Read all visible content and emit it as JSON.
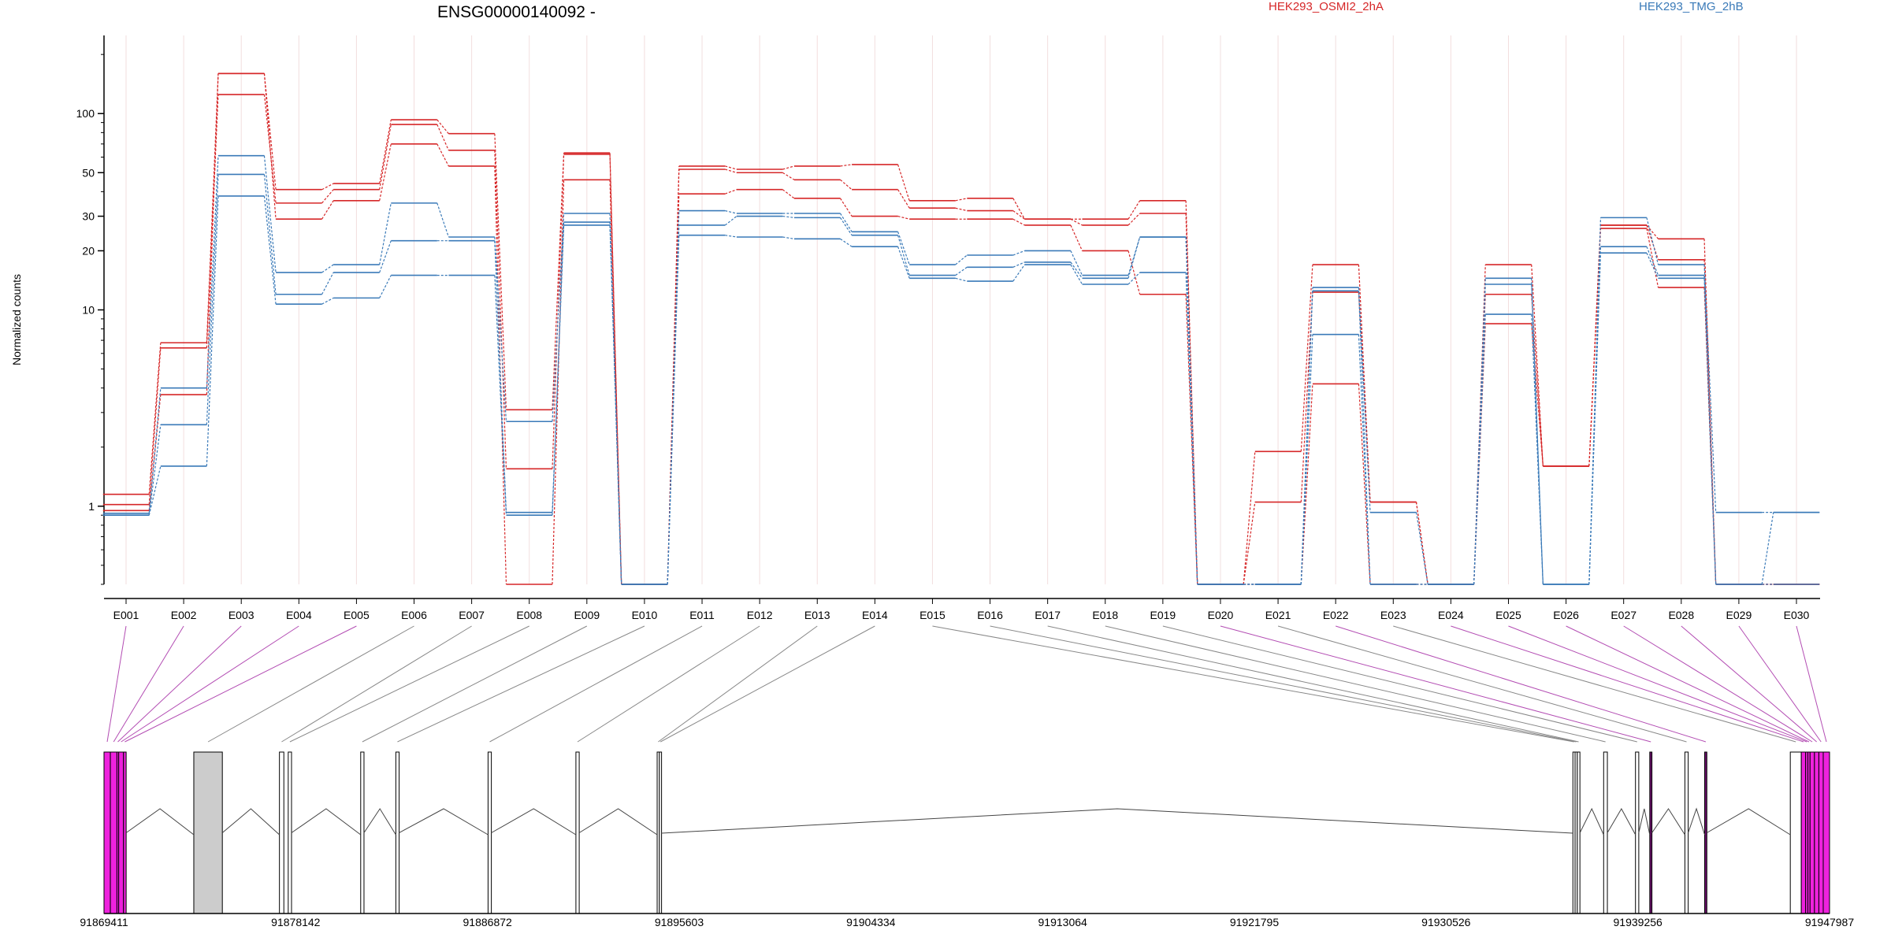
{
  "chart_data": {
    "type": "line",
    "title": "ENSG00000140092 -",
    "ylabel": "Normalized counts",
    "yscale": "log",
    "ylim": [
      0.4,
      250
    ],
    "yticks": [
      1,
      10,
      20,
      30,
      50,
      100
    ],
    "categories": [
      "E001",
      "E002",
      "E003",
      "E004",
      "E005",
      "E006",
      "E007",
      "E008",
      "E009",
      "E010",
      "E011",
      "E012",
      "E013",
      "E014",
      "E015",
      "E016",
      "E017",
      "E018",
      "E019",
      "E020",
      "E021",
      "E022",
      "E023",
      "E024",
      "E025",
      "E026",
      "E027",
      "E028",
      "E029",
      "E030"
    ],
    "legend": [
      {
        "label": "HEK293_OSMI2_2hA",
        "color": "#d62728"
      },
      {
        "label": "HEK293_TMG_2hB",
        "color": "#3a7ab8"
      }
    ],
    "series": [
      {
        "group": "HEK293_OSMI2_2hA",
        "color": "#d62728",
        "values": [
          1.15,
          6.8,
          160,
          41,
          44,
          93,
          79,
          3.1,
          63,
          0.4,
          54,
          52,
          54,
          55,
          36,
          37,
          29,
          29,
          36,
          0.4,
          1.9,
          17,
          1.05,
          0.4,
          17,
          1.6,
          27,
          23,
          0.4,
          0.4
        ]
      },
      {
        "group": "HEK293_OSMI2_2hA",
        "color": "#d62728",
        "values": [
          1.02,
          6.4,
          125,
          35,
          41,
          88,
          65,
          1.55,
          62,
          0.4,
          52,
          50,
          46,
          41,
          33,
          32,
          29,
          27,
          31,
          0.4,
          1.05,
          12.3,
          1.05,
          0.4,
          12,
          1.6,
          27,
          18,
          0.4,
          0.4
        ]
      },
      {
        "group": "HEK293_OSMI2_2hA",
        "color": "#d62728",
        "values": [
          0.95,
          3.7,
          160,
          29,
          36,
          70,
          54,
          0.4,
          46,
          0.4,
          39,
          41,
          37,
          30,
          29,
          29,
          27,
          20,
          12,
          0.4,
          0.4,
          4.2,
          0.4,
          0.4,
          8.5,
          1.6,
          26,
          13,
          0.4,
          0.4
        ]
      },
      {
        "group": "HEK293_TMG_2hB",
        "color": "#3a7ab8",
        "values": [
          0.92,
          4.0,
          61,
          15.5,
          17,
          35,
          23.5,
          2.7,
          31,
          0.4,
          32,
          31,
          31,
          25,
          17,
          19,
          20,
          15,
          23.5,
          0.4,
          0.4,
          13,
          0.93,
          0.4,
          14.5,
          0.4,
          29.5,
          17,
          0.93,
          0.93
        ]
      },
      {
        "group": "HEK293_TMG_2hB",
        "color": "#3a7ab8",
        "values": [
          0.9,
          2.6,
          49,
          12,
          15.5,
          22.5,
          22.5,
          0.93,
          28,
          0.4,
          27,
          30,
          29.5,
          24,
          15,
          16.5,
          17.5,
          14.5,
          23.5,
          0.4,
          0.4,
          12.5,
          0.4,
          0.4,
          13.5,
          0.4,
          21,
          15,
          0.4,
          0.93
        ]
      },
      {
        "group": "HEK293_TMG_2hB",
        "color": "#3a7ab8",
        "values": [
          0.9,
          1.6,
          38,
          10.7,
          11.5,
          15,
          15,
          0.9,
          27,
          0.4,
          24,
          23.5,
          23,
          21,
          14.5,
          14,
          17,
          13.5,
          15.5,
          0.4,
          0.4,
          7.5,
          0.4,
          0.4,
          9.5,
          0.4,
          19.5,
          14.5,
          0.4,
          0.4
        ]
      }
    ],
    "gene_model": {
      "coordinate_ticks": [
        "91869411",
        "91878142",
        "91886872",
        "91895603",
        "91904334",
        "91913064",
        "91921795",
        "91930526",
        "91939256",
        "91947987"
      ],
      "exons": [
        {
          "id": "E001",
          "start": 91869411,
          "end": 91869700,
          "color": "#ee22dd"
        },
        {
          "id": "E002",
          "start": 91869700,
          "end": 91870000,
          "color": "#ee22dd"
        },
        {
          "id": "E003",
          "start": 91870000,
          "end": 91870080,
          "color": "#ee22dd"
        },
        {
          "id": "E004",
          "start": 91870080,
          "end": 91870300,
          "color": "#ee22dd"
        },
        {
          "id": "E005",
          "start": 91870300,
          "end": 91870420,
          "color": "#ee22dd"
        },
        {
          "id": "E006",
          "start": 91873500,
          "end": 91874800,
          "color": "#cccccc"
        },
        {
          "id": "E007",
          "start": 91877400,
          "end": 91877600,
          "color": "#ffffff"
        },
        {
          "id": "E008",
          "start": 91877800,
          "end": 91877950,
          "color": "#ffffff"
        },
        {
          "id": "E009",
          "start": 91881100,
          "end": 91881250,
          "color": "#ffffff"
        },
        {
          "id": "E010",
          "start": 91882700,
          "end": 91882850,
          "color": "#ffffff"
        },
        {
          "id": "E011",
          "start": 91886900,
          "end": 91887050,
          "color": "#ffffff"
        },
        {
          "id": "E012",
          "start": 91890900,
          "end": 91891050,
          "color": "#ffffff"
        },
        {
          "id": "E013",
          "start": 91894600,
          "end": 91894700,
          "color": "#ffffff"
        },
        {
          "id": "E014",
          "start": 91894700,
          "end": 91894800,
          "color": "#ffffff"
        },
        {
          "id": "E015",
          "start": 91936300,
          "end": 91936400,
          "color": "#ffffff"
        },
        {
          "id": "E016",
          "start": 91936400,
          "end": 91936500,
          "color": "#ffffff"
        },
        {
          "id": "E017",
          "start": 91936500,
          "end": 91936620,
          "color": "#ffffff"
        },
        {
          "id": "E018",
          "start": 91937700,
          "end": 91937870,
          "color": "#ffffff"
        },
        {
          "id": "E019",
          "start": 91939150,
          "end": 91939300,
          "color": "#ffffff"
        },
        {
          "id": "E020",
          "start": 91939800,
          "end": 91939900,
          "color": "#6a0f6a"
        },
        {
          "id": "E021",
          "start": 91941400,
          "end": 91941550,
          "color": "#ffffff"
        },
        {
          "id": "E022",
          "start": 91942300,
          "end": 91942400,
          "color": "#6a0f6a"
        },
        {
          "id": "E023",
          "start": 91946200,
          "end": 91946700,
          "color": "#ffffff"
        },
        {
          "id": "E024",
          "start": 91946700,
          "end": 91946900,
          "color": "#ee22dd"
        },
        {
          "id": "E025",
          "start": 91946900,
          "end": 91947000,
          "color": "#ee22dd"
        },
        {
          "id": "E026",
          "start": 91947000,
          "end": 91947100,
          "color": "#ee22dd"
        },
        {
          "id": "E027",
          "start": 91947100,
          "end": 91947300,
          "color": "#ee22dd"
        },
        {
          "id": "E028",
          "start": 91947300,
          "end": 91947500,
          "color": "#ee22dd"
        },
        {
          "id": "E029",
          "start": 91947500,
          "end": 91947700,
          "color": "#ee22dd"
        },
        {
          "id": "E030",
          "start": 91947700,
          "end": 91947987,
          "color": "#ee22dd"
        }
      ],
      "connector_colors": {
        "coding": "#b34db3",
        "noncoding": "#888888"
      }
    }
  }
}
